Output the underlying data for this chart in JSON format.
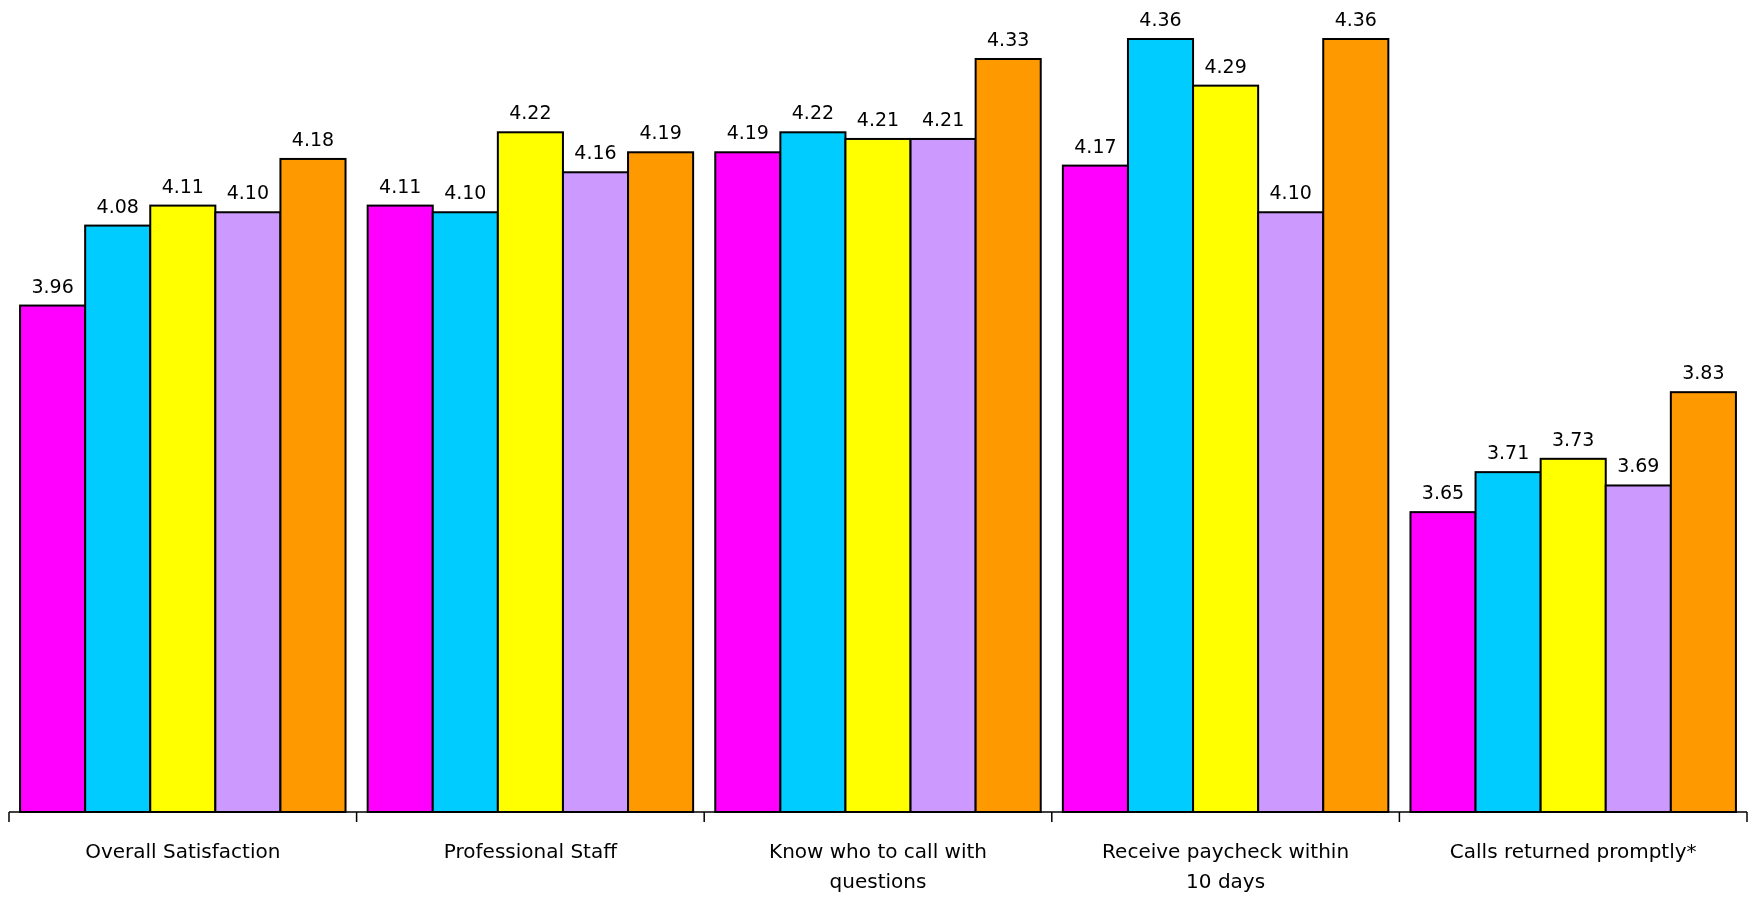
{
  "chart_data": {
    "type": "bar",
    "categories": [
      "Overall Satisfaction",
      "Professional Staff",
      "Know who to call with questions",
      "Receive paycheck within 10 days",
      "Calls returned promptly*"
    ],
    "series": [
      {
        "color": "#ff00ff",
        "values": [
          3.96,
          4.11,
          4.19,
          4.17,
          3.65
        ],
        "value_labels": [
          "3.96",
          "4.11",
          "4.19",
          "4.17",
          "3.65"
        ]
      },
      {
        "color": "#00ccff",
        "values": [
          4.08,
          4.1,
          4.22,
          4.36,
          3.71
        ],
        "value_labels": [
          "4.08",
          "4.10",
          "4.22",
          "4.36",
          "3.71"
        ]
      },
      {
        "color": "#ffff00",
        "values": [
          4.11,
          4.22,
          4.21,
          4.29,
          3.73
        ],
        "value_labels": [
          "4.11",
          "4.22",
          "4.21",
          "4.29",
          "3.73"
        ]
      },
      {
        "color": "#cc99ff",
        "values": [
          4.1,
          4.16,
          4.21,
          4.1,
          3.69
        ],
        "value_labels": [
          "4.10",
          "4.16",
          "4.21",
          "4.10",
          "3.69"
        ]
      },
      {
        "color": "#ff9900",
        "values": [
          4.18,
          4.19,
          4.33,
          4.36,
          3.83
        ],
        "value_labels": [
          "4.18",
          "4.19",
          "4.33",
          "4.36",
          "3.83"
        ]
      }
    ],
    "ylim": [
      3.2,
      4.36
    ],
    "tick_labels": "x"
  }
}
